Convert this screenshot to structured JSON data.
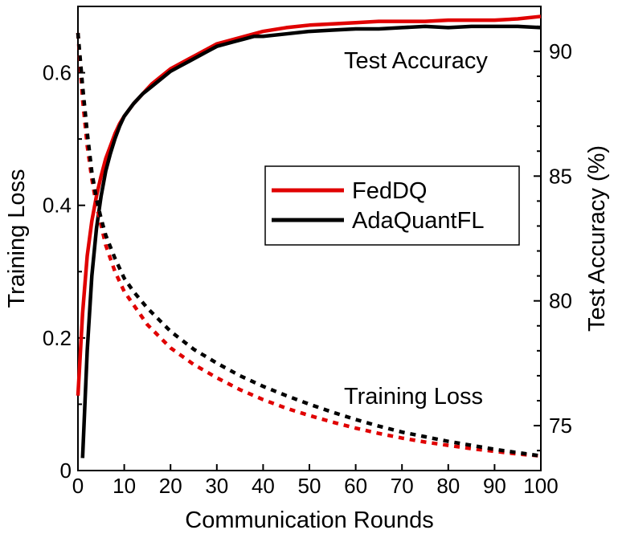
{
  "chart_data": {
    "type": "line",
    "x_axis": {
      "label": "Communication  Rounds",
      "range": [
        0,
        100
      ],
      "ticks": [
        "0",
        "10",
        "20",
        "30",
        "40",
        "50",
        "60",
        "70",
        "80",
        "90",
        "100"
      ]
    },
    "y_axis_left": {
      "label": "Training  Loss",
      "range": [
        0,
        0.7
      ],
      "ticks": [
        "0",
        "0.2",
        "0.4",
        "0.6"
      ]
    },
    "y_axis_right": {
      "label": "Test Accuracy (%)",
      "range": [
        73.2,
        91.8
      ],
      "ticks": [
        "75",
        "80",
        "85",
        "90"
      ]
    },
    "annotations": {
      "accuracy": "Test  Accuracy",
      "loss": "Training  Loss"
    },
    "legend": {
      "placement": "center-right",
      "entries": [
        {
          "name": "FedDQ",
          "color": "#e00000"
        },
        {
          "name": "AdaQuantFL",
          "color": "#000000"
        }
      ]
    },
    "series": [
      {
        "name": "FedDQ",
        "metric": "Test Accuracy (%)",
        "axis": "right",
        "style": "solid",
        "color": "#e00000",
        "x": [
          0,
          1,
          2,
          3,
          4,
          5,
          6,
          7,
          8,
          9,
          10,
          12,
          14,
          16,
          18,
          20,
          22,
          24,
          26,
          28,
          30,
          32,
          34,
          36,
          38,
          40,
          45,
          50,
          55,
          60,
          65,
          70,
          75,
          80,
          85,
          90,
          95,
          100
        ],
        "y": [
          76.2,
          79.5,
          81.8,
          83.2,
          84.2,
          85.0,
          85.7,
          86.2,
          86.7,
          87.1,
          87.4,
          87.9,
          88.3,
          88.7,
          89.0,
          89.3,
          89.5,
          89.7,
          89.9,
          90.1,
          90.3,
          90.4,
          90.5,
          90.6,
          90.7,
          90.8,
          90.95,
          91.05,
          91.1,
          91.15,
          91.2,
          91.2,
          91.2,
          91.25,
          91.25,
          91.25,
          91.3,
          91.4
        ]
      },
      {
        "name": "AdaQuantFL",
        "metric": "Test Accuracy (%)",
        "axis": "right",
        "style": "solid",
        "color": "#000000",
        "x": [
          1,
          2,
          3,
          4,
          5,
          6,
          7,
          8,
          9,
          10,
          12,
          14,
          16,
          18,
          20,
          22,
          24,
          26,
          28,
          30,
          32,
          34,
          36,
          38,
          40,
          45,
          50,
          55,
          60,
          65,
          70,
          75,
          80,
          85,
          90,
          95,
          100
        ],
        "y": [
          73.7,
          78.0,
          81.0,
          82.9,
          84.2,
          85.2,
          85.9,
          86.5,
          87.0,
          87.4,
          87.9,
          88.3,
          88.6,
          88.9,
          89.2,
          89.4,
          89.6,
          89.8,
          90.0,
          90.2,
          90.3,
          90.4,
          90.5,
          90.6,
          90.6,
          90.7,
          90.8,
          90.85,
          90.9,
          90.9,
          90.95,
          91.0,
          90.95,
          91.0,
          91.0,
          91.0,
          90.95
        ]
      },
      {
        "name": "FedDQ",
        "metric": "Training Loss",
        "axis": "left",
        "style": "dotted",
        "color": "#e00000",
        "x": [
          0,
          1,
          2,
          3,
          4,
          5,
          6,
          8,
          10,
          12,
          15,
          20,
          25,
          30,
          35,
          40,
          45,
          50,
          55,
          60,
          65,
          70,
          75,
          80,
          85,
          90,
          95,
          100
        ],
        "y": [
          0.66,
          0.56,
          0.49,
          0.44,
          0.4,
          0.37,
          0.34,
          0.3,
          0.27,
          0.25,
          0.22,
          0.185,
          0.16,
          0.14,
          0.122,
          0.107,
          0.094,
          0.083,
          0.073,
          0.064,
          0.056,
          0.049,
          0.043,
          0.038,
          0.033,
          0.029,
          0.025,
          0.022
        ]
      },
      {
        "name": "AdaQuantFL",
        "metric": "Training Loss",
        "axis": "left",
        "style": "dotted",
        "color": "#000000",
        "x": [
          0,
          1,
          2,
          3,
          4,
          5,
          6,
          8,
          10,
          12,
          15,
          20,
          25,
          30,
          35,
          40,
          45,
          50,
          55,
          60,
          65,
          70,
          75,
          80,
          85,
          90,
          95,
          100
        ],
        "y": [
          0.66,
          0.58,
          0.51,
          0.45,
          0.41,
          0.38,
          0.355,
          0.32,
          0.29,
          0.27,
          0.245,
          0.21,
          0.183,
          0.162,
          0.143,
          0.127,
          0.113,
          0.1,
          0.088,
          0.077,
          0.067,
          0.058,
          0.051,
          0.044,
          0.038,
          0.032,
          0.027,
          0.022
        ]
      }
    ]
  }
}
